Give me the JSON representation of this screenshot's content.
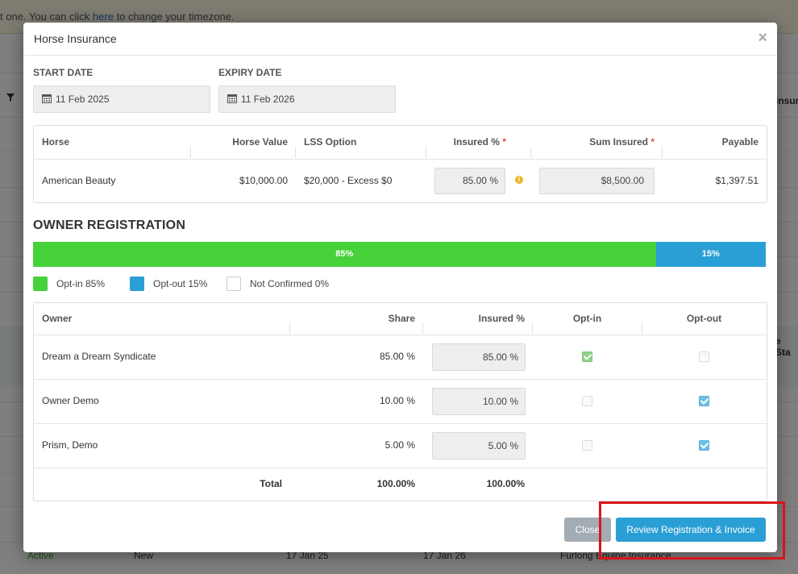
{
  "background": {
    "banner_prefix": "t one. You can click ",
    "banner_link": "here",
    "banner_suffix": " to change your timezone.",
    "right_col_1": "Insured",
    "right_col_2": "e Sta",
    "last_row": {
      "status": "Active",
      "type": "New",
      "start": "17 Jan 25",
      "end": "17 Jan 26",
      "insurer": "Furlong Equine Insurance"
    }
  },
  "modal": {
    "title": "Horse Insurance",
    "close_glyph": "×",
    "start_date_label": "START DATE",
    "start_date_value": "11 Feb 2025",
    "expiry_date_label": "EXPIRY DATE",
    "expiry_date_value": "11 Feb 2026",
    "horse_table": {
      "headers": {
        "horse": "Horse",
        "horse_value": "Horse Value",
        "lss_option": "LSS Option",
        "insured_pct": "Insured %",
        "sum_insured": "Sum Insured",
        "payable": "Payable",
        "required_mark": "*"
      },
      "row": {
        "horse": "American Beauty",
        "horse_value": "$10,000.00",
        "lss_option": "$20,000 - Excess $0",
        "insured_pct": "85.00 %",
        "sum_insured": "$8,500.00",
        "payable": "$1,397.51"
      }
    },
    "owner_registration": {
      "title": "OWNER REGISTRATION",
      "bar": {
        "opt_in_pct": 85,
        "opt_out_pct": 15,
        "opt_in_label": "85%",
        "opt_out_label": "15%"
      },
      "legend": {
        "opt_in": "Opt-in 85%",
        "opt_out": "Opt-out 15%",
        "not_confirmed": "Not Confirmed 0%"
      },
      "colors": {
        "opt_in": "#47d13a",
        "opt_out": "#2a9fd6",
        "not_confirmed": "#ffffff"
      }
    },
    "owner_table": {
      "headers": {
        "owner": "Owner",
        "share": "Share",
        "insured_pct": "Insured %",
        "opt_in": "Opt-in",
        "opt_out": "Opt-out"
      },
      "rows": [
        {
          "owner": "Dream a Dream Syndicate",
          "share": "85.00 %",
          "insured_pct": "85.00 %",
          "opt_in": true,
          "opt_out": false
        },
        {
          "owner": "Owner Demo",
          "share": "10.00 %",
          "insured_pct": "10.00 %",
          "opt_in": false,
          "opt_out": true
        },
        {
          "owner": "Prism, Demo",
          "share": "5.00 %",
          "insured_pct": "5.00 %",
          "opt_in": false,
          "opt_out": true
        }
      ],
      "total": {
        "label": "Total",
        "share": "100.00%",
        "insured_pct": "100.00%"
      }
    },
    "buttons": {
      "close": "Close",
      "review": "Review Registration & Invoice"
    }
  }
}
